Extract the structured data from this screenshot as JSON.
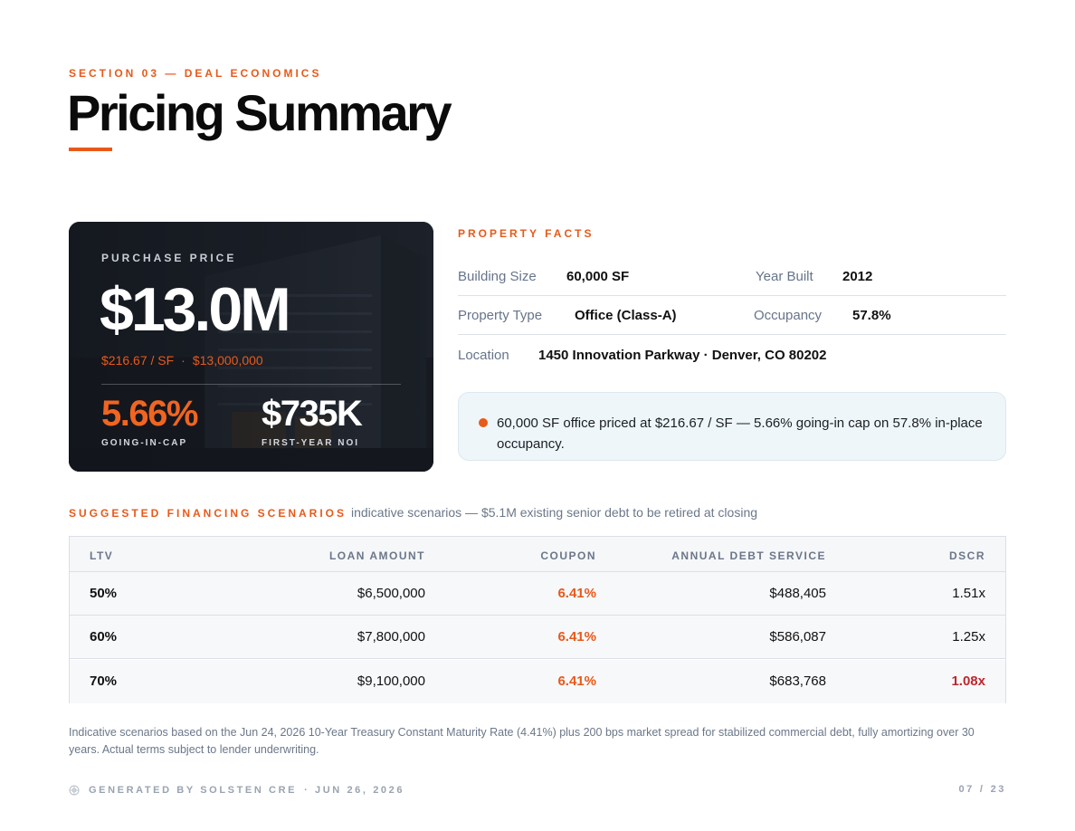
{
  "header": {
    "eyebrow": "SECTION 03 — DEAL ECONOMICS",
    "title": "Pricing Summary"
  },
  "hero": {
    "label": "PURCHASE PRICE",
    "price": "$13.0M",
    "per_sf": "$216.67 / SF",
    "sep": "·",
    "full_price": "$13,000,000",
    "cap_value": "5.66%",
    "cap_label": "GOING-IN-CAP",
    "noi_value": "$735K",
    "noi_label": "FIRST-YEAR NOI"
  },
  "property_facts": {
    "title": "PROPERTY FACTS",
    "building_size_label": "Building Size",
    "building_size": "60,000 SF",
    "year_built_label": "Year Built",
    "year_built": "2012",
    "property_type_label": "Property Type",
    "property_type": "Office (Class-A)",
    "occupancy_label": "Occupancy",
    "occupancy": "57.8%",
    "location_label": "Location",
    "location": "1450 Innovation Parkway · Denver, CO 80202"
  },
  "callout": {
    "text": "60,000 SF office priced at $216.67 / SF — 5.66% going-in cap on 57.8% in-place occupancy."
  },
  "financing": {
    "title": "SUGGESTED FINANCING SCENARIOS",
    "note": "indicative scenarios — $5.1M existing senior debt to be retired at closing",
    "columns": [
      "LTV",
      "LOAN AMOUNT",
      "COUPON",
      "ANNUAL DEBT SERVICE",
      "DSCR"
    ],
    "rows": [
      {
        "ltv": "50%",
        "loan": "$6,500,000",
        "coupon": "6.41%",
        "ads": "$488,405",
        "dscr": "1.51x"
      },
      {
        "ltv": "60%",
        "loan": "$7,800,000",
        "coupon": "6.41%",
        "ads": "$586,087",
        "dscr": "1.25x"
      },
      {
        "ltv": "70%",
        "loan": "$9,100,000",
        "coupon": "6.41%",
        "ads": "$683,768",
        "dscr": "1.08x"
      }
    ]
  },
  "footnote": "Indicative scenarios based on the Jun 24, 2026 10-Year Treasury Constant Maturity Rate (4.41%) plus 200 bps market spread for stabilized commercial debt, fully amortizing over 30 years. Actual terms subject to lender underwriting.",
  "footer": {
    "generated": "GENERATED BY SOLSTEN CRE",
    "date": "· JUN 26, 2026",
    "page": "07",
    "page_sep": "/",
    "total": "23"
  },
  "colors": {
    "accent": "#e8591a",
    "warning": "#c0262d",
    "hero_bg": "#1c2129"
  }
}
